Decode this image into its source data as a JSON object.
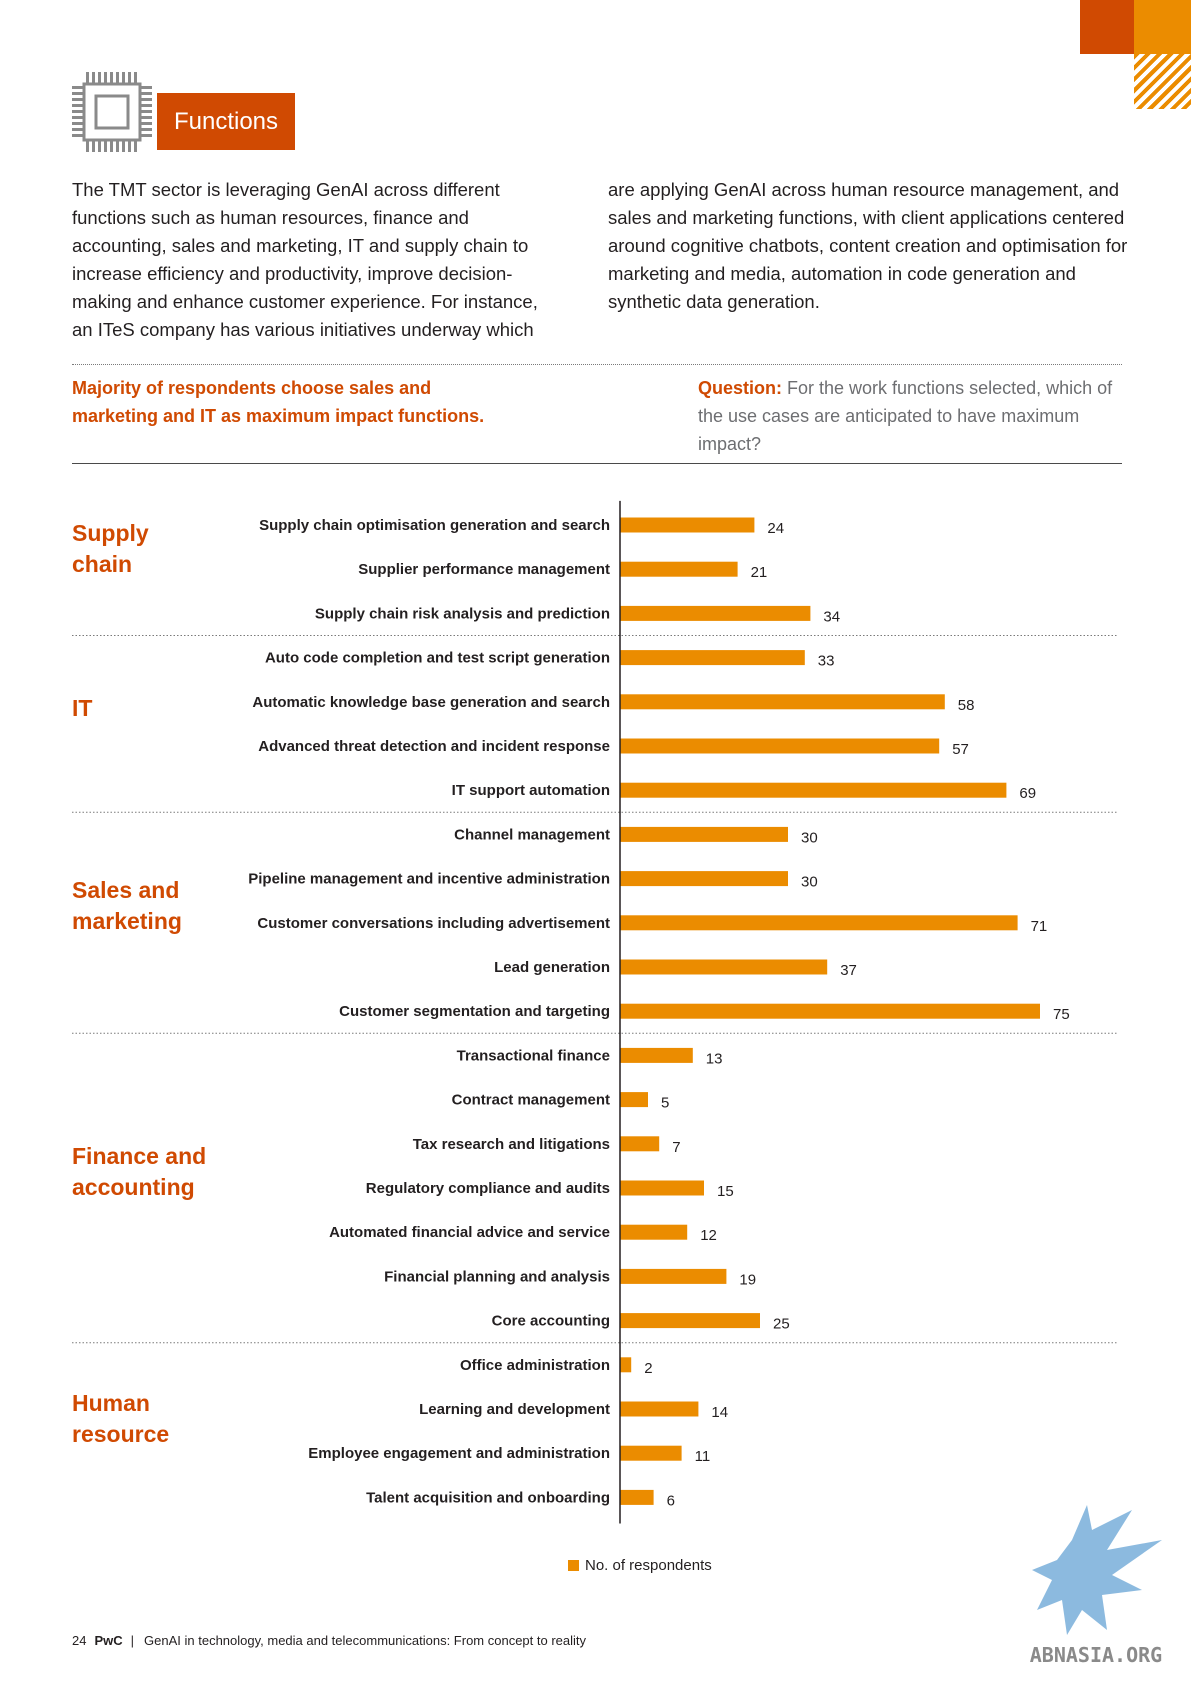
{
  "section_tag": "Functions",
  "intro_left": "The TMT sector is leveraging GenAI across different functions such as human resources, finance and accounting, sales and marketing, IT and supply chain to increase efficiency and productivity, improve decision-making and enhance customer experience. For instance, an ITeS company has various initiatives underway which",
  "intro_right": "are applying GenAI across human resource management, and sales and marketing functions, with client applications centered around cognitive chatbots, content creation and optimisation for marketing and media, automation in code generation and synthetic data generation.",
  "highlight": "Majority of respondents choose sales and marketing and IT as maximum impact functions.",
  "question": {
    "label": "Question:",
    "text": " For the work functions selected, which of the use cases are anticipated to have maximum impact?"
  },
  "colors": {
    "orange_dark": "#d04a02",
    "orange": "#eb8c00"
  },
  "chart_data": {
    "type": "bar",
    "orientation": "horizontal",
    "legend": "No. of respondents",
    "groups": [
      {
        "title": "Supply chain",
        "categories": [
          "Supply chain optimisation generation and search",
          "Supplier performance management",
          "Supply chain risk analysis and prediction"
        ],
        "values": [
          24,
          21,
          34
        ]
      },
      {
        "title": "IT",
        "categories": [
          "Auto code completion and test script generation",
          "Automatic knowledge base generation and search",
          "Advanced threat detection and incident response",
          "IT support automation"
        ],
        "values": [
          33,
          58,
          57,
          69
        ]
      },
      {
        "title": "Sales and marketing",
        "categories": [
          "Channel management",
          "Pipeline management and incentive administration",
          "Customer conversations including advertisement",
          "Lead generation",
          "Customer segmentation and targeting"
        ],
        "values": [
          30,
          30,
          71,
          37,
          75
        ]
      },
      {
        "title": "Finance and accounting",
        "categories": [
          "Transactional finance",
          "Contract management",
          "Tax research and litigations",
          "Regulatory compliance and audits",
          "Automated financial advice and service",
          "Financial planning and analysis",
          "Core accounting"
        ],
        "values": [
          13,
          5,
          7,
          15,
          12,
          19,
          25
        ]
      },
      {
        "title": "Human resource",
        "categories": [
          "Office administration",
          "Learning and development",
          "Employee engagement and administration",
          "Talent acquisition and onboarding"
        ],
        "values": [
          2,
          14,
          11,
          6
        ]
      }
    ]
  },
  "footer": {
    "page": "24",
    "brand": "PwC",
    "separator": "|",
    "title": "GenAI in technology, media and telecommunications: From concept to reality"
  },
  "watermark": {
    "text": "ABNASIA.ORG",
    "icon": "griffin-logo"
  }
}
